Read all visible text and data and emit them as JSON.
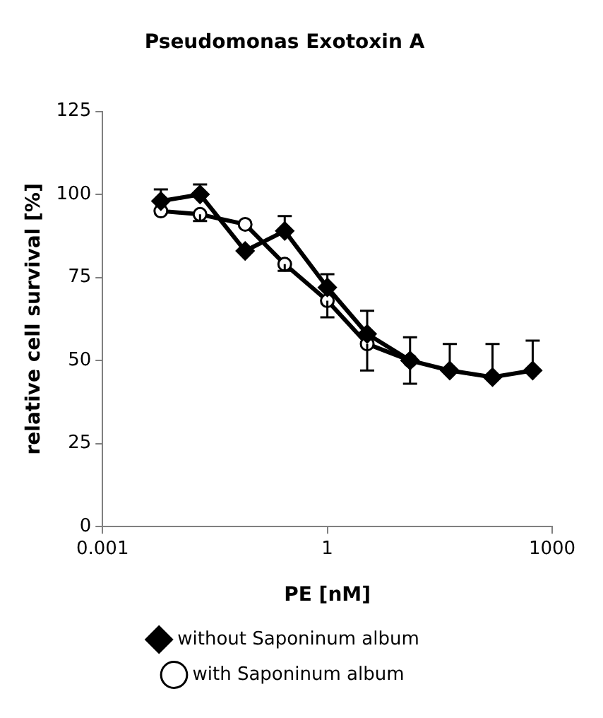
{
  "chart_data": {
    "type": "line",
    "title": "Pseudomonas Exotoxin A",
    "xlabel": "PE [nM]",
    "ylabel": "relative cell survival [%]",
    "log": "x",
    "xlim": [
      0.001,
      1000
    ],
    "xticks": [
      0.001,
      1,
      1000
    ],
    "ylim": [
      0,
      125
    ],
    "yticks": [
      0,
      25,
      50,
      75,
      100,
      125
    ],
    "grid": false,
    "legend": "bottom",
    "series": [
      {
        "name": "without Saponinum album",
        "color": "#000000",
        "marker": "diamond",
        "x": [
          0.006,
          0.02,
          0.08,
          0.27,
          1,
          3.4,
          12.7,
          43,
          160,
          550
        ],
        "values": [
          98,
          100,
          83,
          89,
          72,
          58,
          50,
          47,
          45,
          47
        ],
        "errors": [
          [
            98,
            101.5
          ],
          [
            100,
            103
          ],
          null,
          [
            89,
            93.5
          ],
          [
            72,
            76
          ],
          [
            58,
            65
          ],
          [
            50,
            57
          ],
          [
            47,
            55
          ],
          [
            45,
            55
          ],
          [
            47,
            56
          ]
        ]
      },
      {
        "name": "with Saponinum album",
        "color": "#000000",
        "marker": "circle",
        "x": [
          0.006,
          0.02,
          0.08,
          0.27,
          1,
          3.4,
          12.7
        ],
        "values": [
          95,
          94,
          91,
          79,
          68,
          55,
          50
        ],
        "errors": [
          null,
          [
            92,
            94
          ],
          null,
          [
            77,
            79
          ],
          [
            63,
            68
          ],
          [
            47,
            55
          ],
          [
            43,
            50
          ]
        ]
      }
    ]
  }
}
